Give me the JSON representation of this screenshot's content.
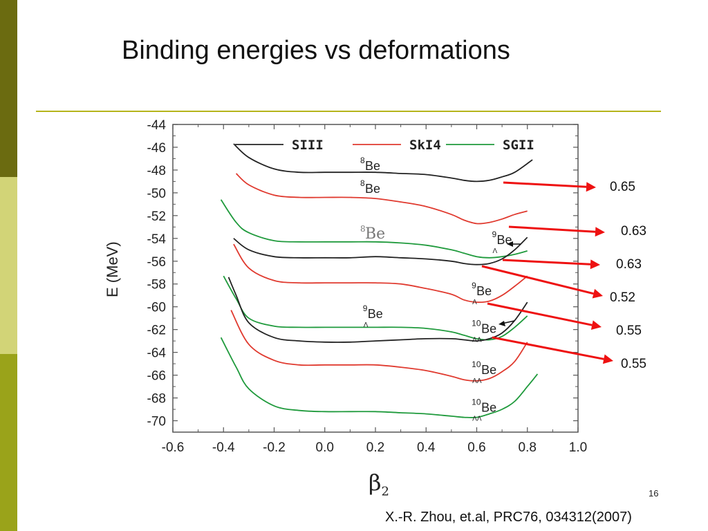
{
  "slide": {
    "title": "Binding energies vs deformations",
    "page_number": "16",
    "citation": "X.-R. Zhou, et.al, PRC76, 034312(2007)",
    "colors": {
      "sidebar_dark": "#6b6b10",
      "sidebar_mid": "#9aa31a",
      "sidebar_light": "#d2d477",
      "rule": "#b5b41c",
      "arrow": "#ee1111"
    }
  },
  "chart_data": {
    "type": "line",
    "xlabel": "β2",
    "ylabel": "E (MeV)",
    "xlim": [
      -0.6,
      1.0
    ],
    "ylim": [
      -71,
      -44
    ],
    "xticks": [
      "-0.6",
      "-0.4",
      "-0.2",
      "0.0",
      "0.2",
      "0.4",
      "0.6",
      "0.8",
      "1.0"
    ],
    "yticks": [
      "-44",
      "-46",
      "-48",
      "-50",
      "-52",
      "-54",
      "-56",
      "-58",
      "-60",
      "-62",
      "-64",
      "-66",
      "-68",
      "-70"
    ],
    "legend": {
      "placement": "top",
      "entries": [
        {
          "name": "SIII",
          "color": "#222222"
        },
        {
          "name": "SkI4",
          "color": "#e03a2f"
        },
        {
          "name": "SGII",
          "color": "#1f9a3c"
        }
      ]
    },
    "series": [
      {
        "force": "SIII",
        "color": "#222222",
        "x": [
          -0.36,
          -0.3,
          -0.2,
          -0.1,
          0.0,
          0.1,
          0.2,
          0.3,
          0.4,
          0.5,
          0.55,
          0.6,
          0.65,
          0.7,
          0.75,
          0.82
        ],
        "y": [
          -45.7,
          -46.9,
          -47.9,
          -48.2,
          -48.2,
          -48.2,
          -48.2,
          -48.3,
          -48.4,
          -48.7,
          -48.9,
          -49.0,
          -48.9,
          -48.6,
          -48.2,
          -47.1
        ]
      },
      {
        "force": "SkI4",
        "color": "#e03a2f",
        "x": [
          -0.35,
          -0.3,
          -0.2,
          -0.1,
          0.0,
          0.1,
          0.2,
          0.3,
          0.4,
          0.5,
          0.55,
          0.6,
          0.65,
          0.7,
          0.75,
          0.8
        ],
        "y": [
          -48.3,
          -49.3,
          -50.2,
          -50.4,
          -50.4,
          -50.4,
          -50.5,
          -50.8,
          -51.2,
          -51.9,
          -52.4,
          -52.7,
          -52.6,
          -52.3,
          -51.9,
          -51.6
        ]
      },
      {
        "force": "SGII",
        "color": "#1f9a3c",
        "x": [
          -0.41,
          -0.35,
          -0.3,
          -0.2,
          -0.1,
          0.0,
          0.1,
          0.2,
          0.3,
          0.4,
          0.5,
          0.55,
          0.6,
          0.65,
          0.7,
          0.75,
          0.8
        ],
        "y": [
          -50.6,
          -52.6,
          -53.5,
          -54.2,
          -54.3,
          -54.3,
          -54.3,
          -54.3,
          -54.4,
          -54.6,
          -55.0,
          -55.3,
          -55.6,
          -55.7,
          -55.6,
          -55.4,
          -55.1
        ]
      },
      {
        "force": "SIII",
        "color": "#222222",
        "x": [
          -0.36,
          -0.3,
          -0.2,
          -0.1,
          0.0,
          0.1,
          0.2,
          0.3,
          0.4,
          0.5,
          0.55,
          0.6,
          0.65,
          0.7,
          0.75,
          0.8
        ],
        "y": [
          -54.0,
          -55.0,
          -55.6,
          -55.7,
          -55.7,
          -55.7,
          -55.6,
          -55.7,
          -55.8,
          -56.0,
          -56.2,
          -56.3,
          -56.2,
          -55.8,
          -55.0,
          -53.9
        ]
      },
      {
        "force": "SkI4",
        "color": "#e03a2f",
        "x": [
          -0.36,
          -0.3,
          -0.2,
          -0.1,
          0.0,
          0.1,
          0.2,
          0.3,
          0.4,
          0.5,
          0.55,
          0.6,
          0.65,
          0.7,
          0.75,
          0.8
        ],
        "y": [
          -54.5,
          -56.6,
          -57.7,
          -57.9,
          -57.9,
          -57.9,
          -57.9,
          -58.0,
          -58.4,
          -58.9,
          -59.4,
          -59.6,
          -59.5,
          -59.0,
          -58.2,
          -57.3
        ]
      },
      {
        "force": "SGII",
        "color": "#1f9a3c",
        "x": [
          -0.4,
          -0.35,
          -0.3,
          -0.2,
          -0.1,
          0.0,
          0.1,
          0.2,
          0.3,
          0.4,
          0.5,
          0.55,
          0.6,
          0.65,
          0.7,
          0.75,
          0.8
        ],
        "y": [
          -57.3,
          -59.3,
          -61.0,
          -61.7,
          -61.8,
          -61.8,
          -61.8,
          -61.8,
          -61.8,
          -61.9,
          -62.2,
          -62.5,
          -62.8,
          -62.9,
          -62.6,
          -61.8,
          -60.8
        ]
      },
      {
        "force": "SIII",
        "color": "#222222",
        "x": [
          -0.38,
          -0.35,
          -0.3,
          -0.2,
          -0.1,
          0.0,
          0.1,
          0.2,
          0.3,
          0.4,
          0.5,
          0.55,
          0.6,
          0.65,
          0.7,
          0.75,
          0.8
        ],
        "y": [
          -57.4,
          -59.0,
          -61.4,
          -62.7,
          -63.0,
          -63.1,
          -63.1,
          -63.0,
          -62.9,
          -62.8,
          -62.8,
          -62.9,
          -63.0,
          -62.8,
          -62.3,
          -61.2,
          -59.6
        ]
      },
      {
        "force": "SkI4",
        "color": "#e03a2f",
        "x": [
          -0.37,
          -0.3,
          -0.2,
          -0.1,
          0.0,
          0.1,
          0.2,
          0.3,
          0.4,
          0.5,
          0.55,
          0.6,
          0.65,
          0.7,
          0.75,
          0.8
        ],
        "y": [
          -60.3,
          -63.3,
          -64.7,
          -65.1,
          -65.1,
          -65.1,
          -65.1,
          -65.3,
          -65.6,
          -66.1,
          -66.4,
          -66.5,
          -66.3,
          -65.7,
          -64.8,
          -63.1
        ]
      },
      {
        "force": "SGII",
        "color": "#1f9a3c",
        "x": [
          -0.41,
          -0.35,
          -0.3,
          -0.2,
          -0.1,
          0.0,
          0.1,
          0.2,
          0.3,
          0.4,
          0.5,
          0.55,
          0.6,
          0.65,
          0.7,
          0.75,
          0.8,
          0.84
        ],
        "y": [
          -62.7,
          -65.3,
          -67.2,
          -68.7,
          -69.1,
          -69.2,
          -69.2,
          -69.2,
          -69.3,
          -69.4,
          -69.6,
          -69.7,
          -69.7,
          -69.4,
          -69.0,
          -68.3,
          -67.0,
          -65.9
        ]
      }
    ],
    "curve_labels": [
      {
        "x": 0.14,
        "y": -48.0,
        "mass": "8",
        "symbol": "Be",
        "sub": "",
        "serif": false
      },
      {
        "x": 0.14,
        "y": -50.0,
        "mass": "8",
        "symbol": "Be",
        "sub": "",
        "serif": false
      },
      {
        "x": 0.14,
        "y": -54.0,
        "mass": "8",
        "symbol": "Be",
        "sub": "",
        "serif": true
      },
      {
        "x": 0.66,
        "y": -54.5,
        "mass": "9",
        "symbol": "Be",
        "sub": "Λ",
        "serif": false
      },
      {
        "x": 0.58,
        "y": -59.0,
        "mass": "9",
        "symbol": "Be",
        "sub": "Λ",
        "serif": false
      },
      {
        "x": 0.15,
        "y": -61.0,
        "mass": "9",
        "symbol": "Be",
        "sub": "Λ",
        "serif": false
      },
      {
        "x": 0.58,
        "y": -62.3,
        "mass": "10",
        "symbol": "Be",
        "sub": "ΛΛ",
        "serif": false
      },
      {
        "x": 0.58,
        "y": -65.9,
        "mass": "10",
        "symbol": "Be",
        "sub": "ΛΛ",
        "serif": false
      },
      {
        "x": 0.58,
        "y": -69.2,
        "mass": "10",
        "symbol": "Be",
        "sub": "ΛΛ",
        "serif": false
      }
    ],
    "annotations": [
      "0.65",
      "0.63",
      "0.63",
      "0.52",
      "0.55",
      "0.55"
    ]
  }
}
